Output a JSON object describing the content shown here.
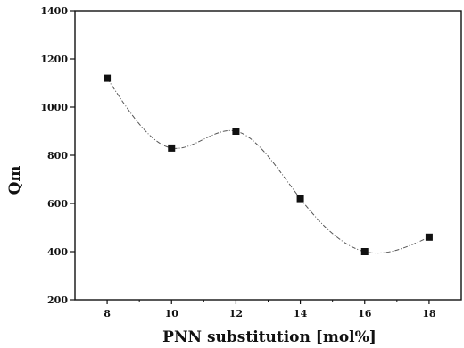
{
  "chart_data": {
    "type": "scatter",
    "title": "",
    "xlabel": "PNN substitution [mol%]",
    "ylabel": "Qm",
    "xlim": [
      7,
      19
    ],
    "ylim": [
      200,
      1400
    ],
    "xticks": [
      8,
      10,
      12,
      14,
      16,
      18
    ],
    "yticks": [
      200,
      400,
      600,
      800,
      1000,
      1200,
      1400
    ],
    "x": [
      8,
      10,
      12,
      14,
      16,
      18
    ],
    "y": [
      1120,
      830,
      900,
      620,
      400,
      460
    ],
    "marker": "square",
    "smooth_curve": true,
    "colors": {
      "axis": "#111111",
      "marker": "#111111",
      "curve": "#555555"
    }
  }
}
